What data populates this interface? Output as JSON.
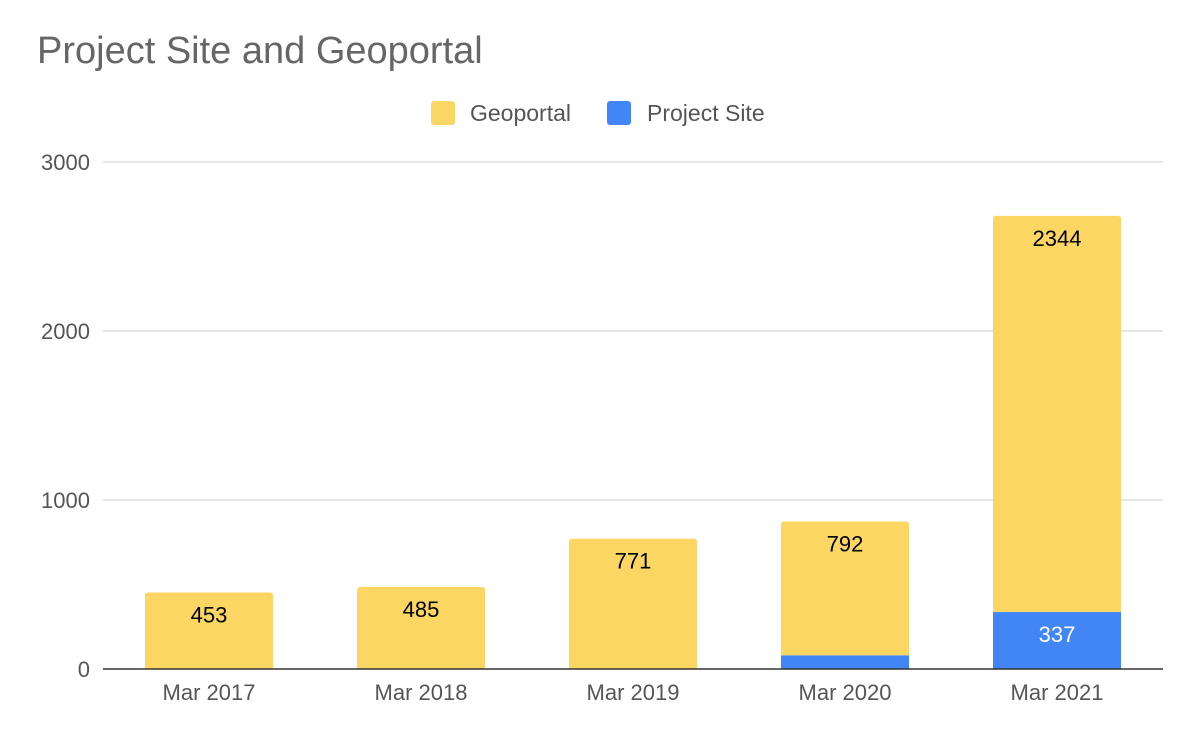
{
  "chart_data": {
    "type": "bar",
    "stacked": true,
    "title": "Project Site and Geoportal",
    "xlabel": "",
    "ylabel": "",
    "categories": [
      "Mar 2017",
      "Mar 2018",
      "Mar 2019",
      "Mar 2020",
      "Mar 2021"
    ],
    "series": [
      {
        "name": "Project Site",
        "color": "#4285f4",
        "values": [
          0,
          0,
          0,
          81,
          337
        ],
        "label_color": "#ffffff"
      },
      {
        "name": "Geoportal",
        "color": "#fcd663",
        "values": [
          453,
          485,
          771,
          792,
          2344
        ],
        "label_color": "#000000"
      }
    ],
    "legend_order": [
      "Geoportal",
      "Project Site"
    ],
    "legend_position": "top",
    "ylim": [
      0,
      3000
    ],
    "yticks": [
      0,
      1000,
      2000,
      3000
    ],
    "grid": true
  }
}
